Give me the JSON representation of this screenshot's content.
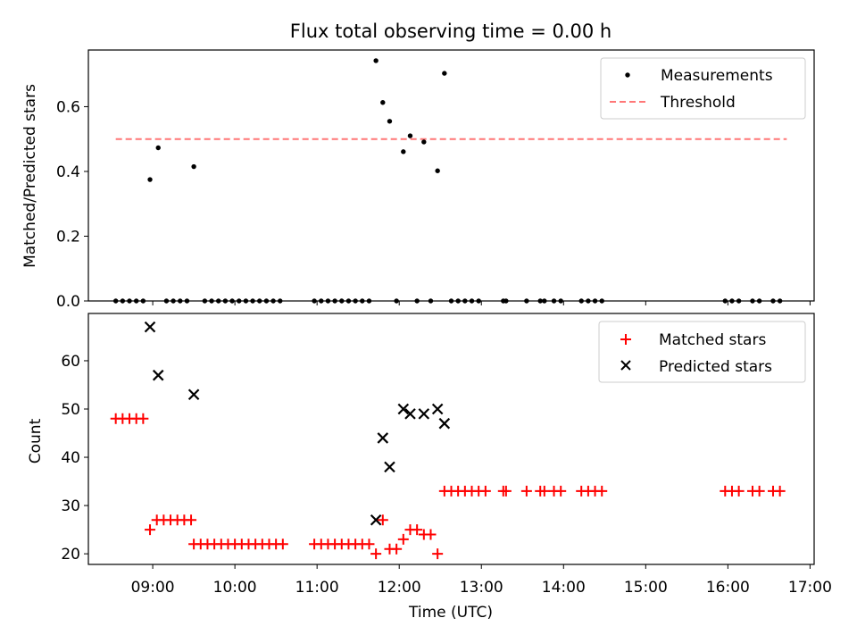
{
  "title": "Flux total observing time = 0.00 h",
  "xlabel": "Time (UTC)",
  "x_tick_labels": [
    "09:00",
    "10:00",
    "11:00",
    "12:00",
    "13:00",
    "14:00",
    "15:00",
    "16:00",
    "17:00"
  ],
  "top_legend": {
    "measurements": "Measurements",
    "threshold": "Threshold"
  },
  "bottom_legend": {
    "matched": "Matched stars",
    "predicted": "Predicted stars"
  },
  "colors": {
    "threshold": "#ff7777",
    "matched": "#ff0000",
    "predicted": "#000000",
    "measurements": "#000000"
  },
  "chart_data": [
    {
      "type": "scatter",
      "ylabel": "Matched/Predicted stars",
      "xlim": [
        "08:13",
        "17:03"
      ],
      "ylim": [
        0,
        0.775
      ],
      "y_ticks": [
        0.0,
        0.2,
        0.4,
        0.6
      ],
      "y_tick_labels": [
        "0.0",
        "0.2",
        "0.4",
        "0.6"
      ],
      "threshold": {
        "value": 0.5,
        "x_start": "08:33",
        "x_end": "16:43"
      },
      "series": [
        {
          "name": "Measurements",
          "points": [
            [
              "08:33",
              0
            ],
            [
              "08:38",
              0
            ],
            [
              "08:43",
              0
            ],
            [
              "08:48",
              0
            ],
            [
              "08:53",
              0
            ],
            [
              "08:58",
              0.375
            ],
            [
              "09:04",
              0.473
            ],
            [
              "09:10",
              0
            ],
            [
              "09:15",
              0
            ],
            [
              "09:20",
              0
            ],
            [
              "09:25",
              0
            ],
            [
              "09:30",
              0.415
            ],
            [
              "09:38",
              0
            ],
            [
              "09:43",
              0
            ],
            [
              "09:48",
              0
            ],
            [
              "09:53",
              0
            ],
            [
              "09:58",
              0
            ],
            [
              "10:03",
              0
            ],
            [
              "10:08",
              0
            ],
            [
              "10:13",
              0
            ],
            [
              "10:18",
              0
            ],
            [
              "10:23",
              0
            ],
            [
              "10:28",
              0
            ],
            [
              "10:33",
              0
            ],
            [
              "10:58",
              0
            ],
            [
              "11:03",
              0
            ],
            [
              "11:08",
              0
            ],
            [
              "11:13",
              0
            ],
            [
              "11:18",
              0
            ],
            [
              "11:23",
              0
            ],
            [
              "11:28",
              0
            ],
            [
              "11:33",
              0
            ],
            [
              "11:38",
              0
            ],
            [
              "11:43",
              0.742
            ],
            [
              "11:48",
              0.613
            ],
            [
              "11:53",
              0.555
            ],
            [
              "11:58",
              0
            ],
            [
              "12:03",
              0.461
            ],
            [
              "12:08",
              0.51
            ],
            [
              "12:13",
              0
            ],
            [
              "12:18",
              0.491
            ],
            [
              "12:23",
              0
            ],
            [
              "12:28",
              0.402
            ],
            [
              "12:33",
              0.703
            ],
            [
              "12:38",
              0
            ],
            [
              "12:43",
              0
            ],
            [
              "12:48",
              0
            ],
            [
              "12:53",
              0
            ],
            [
              "12:58",
              0
            ],
            [
              "13:16",
              0
            ],
            [
              "13:18",
              0
            ],
            [
              "13:33",
              0
            ],
            [
              "13:43",
              0
            ],
            [
              "13:46",
              0
            ],
            [
              "13:53",
              0
            ],
            [
              "13:58",
              0
            ],
            [
              "14:13",
              0
            ],
            [
              "14:18",
              0
            ],
            [
              "14:23",
              0
            ],
            [
              "14:28",
              0
            ],
            [
              "15:58",
              0
            ],
            [
              "16:03",
              0
            ],
            [
              "16:08",
              0
            ],
            [
              "16:18",
              0
            ],
            [
              "16:23",
              0
            ],
            [
              "16:33",
              0
            ],
            [
              "16:38",
              0
            ]
          ]
        }
      ]
    },
    {
      "type": "scatter",
      "ylabel": "Count",
      "xlim": [
        "08:13",
        "17:03"
      ],
      "ylim": [
        17.8,
        69.8
      ],
      "y_ticks": [
        20,
        30,
        40,
        50,
        60
      ],
      "y_tick_labels": [
        "20",
        "30",
        "40",
        "50",
        "60"
      ],
      "series": [
        {
          "name": "Matched stars",
          "points": [
            [
              "08:33",
              48
            ],
            [
              "08:38",
              48
            ],
            [
              "08:43",
              48
            ],
            [
              "08:48",
              48
            ],
            [
              "08:53",
              48
            ],
            [
              "08:58",
              25
            ],
            [
              "09:03",
              27
            ],
            [
              "09:08",
              27
            ],
            [
              "09:13",
              27
            ],
            [
              "09:18",
              27
            ],
            [
              "09:23",
              27
            ],
            [
              "09:28",
              27
            ],
            [
              "09:30",
              22
            ],
            [
              "09:35",
              22
            ],
            [
              "09:40",
              22
            ],
            [
              "09:45",
              22
            ],
            [
              "09:50",
              22
            ],
            [
              "09:55",
              22
            ],
            [
              "10:00",
              22
            ],
            [
              "10:05",
              22
            ],
            [
              "10:10",
              22
            ],
            [
              "10:15",
              22
            ],
            [
              "10:20",
              22
            ],
            [
              "10:25",
              22
            ],
            [
              "10:30",
              22
            ],
            [
              "10:35",
              22
            ],
            [
              "10:58",
              22
            ],
            [
              "11:03",
              22
            ],
            [
              "11:08",
              22
            ],
            [
              "11:13",
              22
            ],
            [
              "11:18",
              22
            ],
            [
              "11:23",
              22
            ],
            [
              "11:28",
              22
            ],
            [
              "11:33",
              22
            ],
            [
              "11:38",
              22
            ],
            [
              "11:43",
              20
            ],
            [
              "11:48",
              27
            ],
            [
              "11:53",
              21
            ],
            [
              "11:58",
              21
            ],
            [
              "12:03",
              23
            ],
            [
              "12:08",
              25
            ],
            [
              "12:13",
              25
            ],
            [
              "12:18",
              24
            ],
            [
              "12:23",
              24
            ],
            [
              "12:28",
              20
            ],
            [
              "12:33",
              33
            ],
            [
              "12:38",
              33
            ],
            [
              "12:43",
              33
            ],
            [
              "12:48",
              33
            ],
            [
              "12:53",
              33
            ],
            [
              "12:58",
              33
            ],
            [
              "13:03",
              33
            ],
            [
              "13:16",
              33
            ],
            [
              "13:18",
              33
            ],
            [
              "13:33",
              33
            ],
            [
              "13:43",
              33
            ],
            [
              "13:46",
              33
            ],
            [
              "13:53",
              33
            ],
            [
              "13:58",
              33
            ],
            [
              "14:13",
              33
            ],
            [
              "14:18",
              33
            ],
            [
              "14:23",
              33
            ],
            [
              "14:28",
              33
            ],
            [
              "15:58",
              33
            ],
            [
              "16:03",
              33
            ],
            [
              "16:08",
              33
            ],
            [
              "16:18",
              33
            ],
            [
              "16:23",
              33
            ],
            [
              "16:33",
              33
            ],
            [
              "16:38",
              33
            ]
          ]
        },
        {
          "name": "Predicted stars",
          "points": [
            [
              "08:58",
              67
            ],
            [
              "09:04",
              57
            ],
            [
              "09:30",
              53
            ],
            [
              "11:43",
              27
            ],
            [
              "11:48",
              44
            ],
            [
              "11:53",
              38
            ],
            [
              "12:03",
              50
            ],
            [
              "12:08",
              49
            ],
            [
              "12:18",
              49
            ],
            [
              "12:28",
              50
            ],
            [
              "12:33",
              47
            ]
          ]
        }
      ]
    }
  ]
}
